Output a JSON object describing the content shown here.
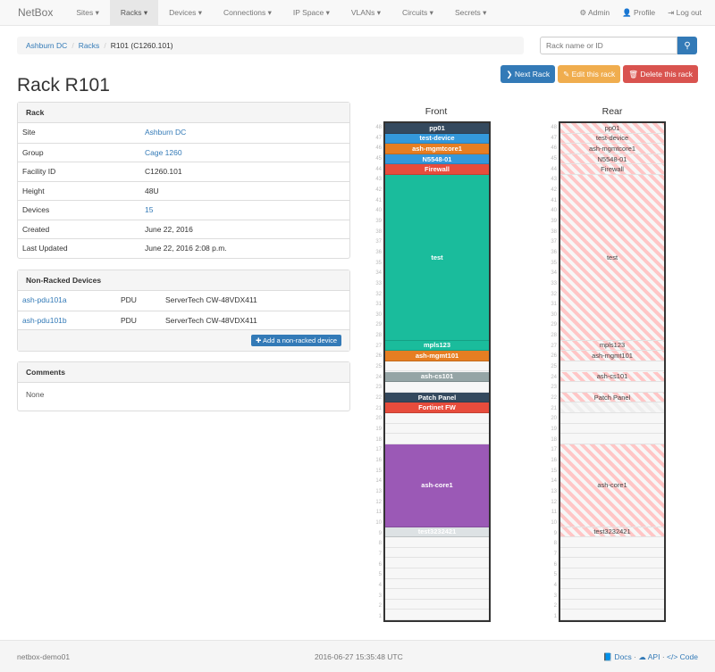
{
  "nav": {
    "brand": "NetBox",
    "items": [
      "Sites ▾",
      "Racks ▾",
      "Devices ▾",
      "Connections ▾",
      "IP Space ▾",
      "VLANs ▾",
      "Circuits ▾",
      "Secrets ▾"
    ],
    "active": 1,
    "admin": "⚙ Admin",
    "profile": "👤 Profile",
    "logout": "⇥ Log out"
  },
  "breadcrumb": [
    "Ashburn DC",
    "Racks",
    "R101 (C1260.101)"
  ],
  "search": {
    "placeholder": "Rack name or ID",
    "icon": "search-icon"
  },
  "buttons": {
    "next": "❯ Next Rack",
    "edit": "✎ Edit this rack",
    "delete": "🗑 Delete this rack"
  },
  "colors": {
    "primary": "#337ab7",
    "warning": "#f0ad4e",
    "danger": "#d9534f"
  },
  "title": "Rack R101",
  "rack_panel": {
    "heading": "Rack",
    "rows": [
      {
        "label": "Site",
        "value": "Ashburn DC",
        "link": true
      },
      {
        "label": "Group",
        "value": "Cage 1260",
        "link": true
      },
      {
        "label": "Facility ID",
        "value": "C1260.101"
      },
      {
        "label": "Height",
        "value": "48U"
      },
      {
        "label": "Devices",
        "value": "15",
        "link": true
      },
      {
        "label": "Created",
        "value": "June 22, 2016"
      },
      {
        "label": "Last Updated",
        "value": "June 22, 2016 2:08 p.m."
      }
    ]
  },
  "nonracked": {
    "heading": "Non-Racked Devices",
    "rows": [
      {
        "name": "ash-pdu101a",
        "role": "PDU",
        "type": "ServerTech CW-48VDX411"
      },
      {
        "name": "ash-pdu101b",
        "role": "PDU",
        "type": "ServerTech CW-48VDX411"
      }
    ],
    "add": "✚ Add a non-racked device"
  },
  "comments": {
    "heading": "Comments",
    "body": "None"
  },
  "rack": {
    "front_label": "Front",
    "rear_label": "Rear",
    "height": 48,
    "devices": [
      {
        "name": "pp01",
        "top": 48,
        "size": 1,
        "color": "#34495e"
      },
      {
        "name": "test-device",
        "top": 47,
        "size": 1,
        "color": "#3498db"
      },
      {
        "name": "ash-mgmtcore1",
        "top": 46,
        "size": 1,
        "color": "#e67e22"
      },
      {
        "name": "N5548-01",
        "top": 45,
        "size": 1,
        "color": "#3498db"
      },
      {
        "name": "Firewall",
        "top": 44,
        "size": 1,
        "color": "#e74c3c"
      },
      {
        "name": "test",
        "top": 43,
        "size": 16,
        "color": "#1abc9c"
      },
      {
        "name": "mpls123",
        "top": 27,
        "size": 1,
        "color": "#1abc9c"
      },
      {
        "name": "ash-mgmt101",
        "top": 26,
        "size": 1,
        "color": "#e67e22"
      },
      {
        "name": "ash-cs101",
        "top": 24,
        "size": 1,
        "color": "#95a5a6"
      },
      {
        "name": "Patch Panel",
        "top": 22,
        "size": 1,
        "color": "#34495e"
      },
      {
        "name": "Fortinet FW",
        "top": 21,
        "size": 1,
        "color": "#e74c3c",
        "half_depth": true
      },
      {
        "name": "ash-core1",
        "top": 17,
        "size": 8,
        "color": "#9b59b6"
      },
      {
        "name": "test3232421",
        "top": 9,
        "size": 1,
        "color": "#dde2e4"
      }
    ]
  },
  "footer": {
    "host": "netbox-demo01",
    "time": "2016-06-27 15:35:48 UTC",
    "docs": "📘 Docs",
    "api": "☁ API",
    "code": "</> Code"
  }
}
